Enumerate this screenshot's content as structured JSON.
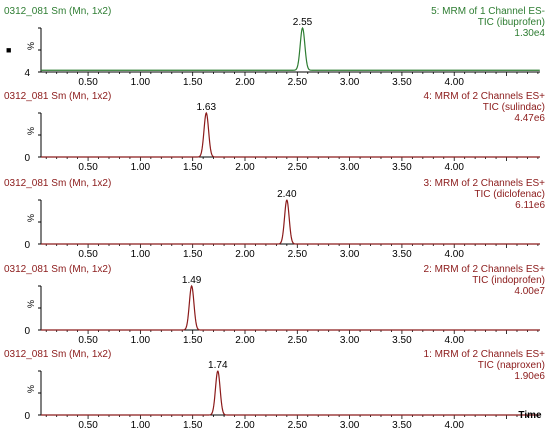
{
  "chart_data": [
    {
      "type": "line",
      "id_label": "0312_081 Sm (Mn, 1x2)",
      "channel": "5: MRM of 1 Channel ES-",
      "compound": "TIC (ibuprofen)",
      "intensity": "1.30e4",
      "peak_label": "2.55",
      "peak_x": 2.55,
      "peak_width": 0.022,
      "baseline_pct": 4,
      "y_tick_top": "%",
      "y_tick_bottom": "4",
      "marker_symbol": "■",
      "color": "#2e7d32",
      "x_tick_labels": [
        "0.50",
        "1.00",
        "1.50",
        "2.00",
        "2.50",
        "3.00",
        "3.50",
        "4.00"
      ],
      "xlim": [
        0.05,
        4.82
      ],
      "ylim": [
        0,
        100
      ]
    },
    {
      "type": "line",
      "id_label": "0312_081 Sm (Mn, 1x2)",
      "channel": "4: MRM of 2 Channels ES+",
      "compound": "TIC (sulindac)",
      "intensity": "4.47e6",
      "peak_label": "1.63",
      "peak_x": 1.63,
      "peak_width": 0.022,
      "baseline_pct": 0,
      "y_tick_top": "%",
      "y_tick_bottom": "0",
      "color": "#8b1a1a",
      "x_tick_labels": [
        "0.50",
        "1.00",
        "1.50",
        "2.00",
        "2.50",
        "3.00",
        "3.50",
        "4.00"
      ],
      "xlim": [
        0.05,
        4.82
      ],
      "ylim": [
        0,
        100
      ]
    },
    {
      "type": "line",
      "id_label": "0312_081 Sm (Mn, 1x2)",
      "channel": "3: MRM of 2 Channels ES+",
      "compound": "TIC (diclofenac)",
      "intensity": "6.11e6",
      "peak_label": "2.40",
      "peak_x": 2.4,
      "peak_width": 0.022,
      "baseline_pct": 0,
      "y_tick_top": "%",
      "y_tick_bottom": "0",
      "color": "#8b1a1a",
      "x_tick_labels": [
        "0.50",
        "1.00",
        "1.50",
        "2.00",
        "2.50",
        "3.00",
        "3.50",
        "4.00"
      ],
      "xlim": [
        0.05,
        4.82
      ],
      "ylim": [
        0,
        100
      ]
    },
    {
      "type": "line",
      "id_label": "0312_081 Sm (Mn, 1x2)",
      "channel": "2: MRM of 2 Channels ES+",
      "compound": "TIC (indoprofen)",
      "intensity": "4.00e7",
      "peak_label": "1.49",
      "peak_x": 1.49,
      "peak_width": 0.022,
      "baseline_pct": 0,
      "y_tick_top": "%",
      "y_tick_bottom": "0",
      "color": "#8b1a1a",
      "x_tick_labels": [
        "0.50",
        "1.00",
        "1.50",
        "2.00",
        "2.50",
        "3.00",
        "3.50",
        "4.00"
      ],
      "xlim": [
        0.05,
        4.82
      ],
      "ylim": [
        0,
        100
      ]
    },
    {
      "type": "line",
      "id_label": "0312_081 Sm (Mn, 1x2)",
      "channel": "1: MRM of 2 Channels ES+",
      "compound": "TIC (naproxen)",
      "intensity": "1.90e6",
      "peak_label": "1.74",
      "peak_x": 1.74,
      "peak_width": 0.022,
      "baseline_pct": 0,
      "y_tick_top": "%",
      "y_tick_bottom": "0",
      "color": "#8b1a1a",
      "x_tick_labels": [
        "0.50",
        "1.00",
        "1.50",
        "2.00",
        "2.50",
        "3.00",
        "3.50",
        "4.00"
      ],
      "xlim": [
        0.05,
        4.82
      ],
      "ylim": [
        0,
        100
      ],
      "xlabel": "Time"
    }
  ],
  "x_tick_values": [
    0.5,
    1.0,
    1.5,
    2.0,
    2.5,
    3.0,
    3.5,
    4.0
  ]
}
